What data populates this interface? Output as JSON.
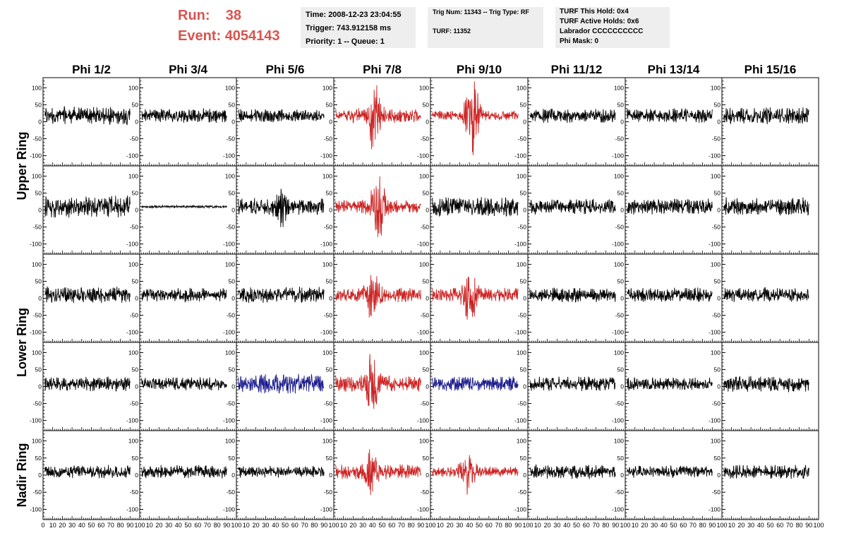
{
  "header": {
    "run_label": "Run:",
    "run_value": "38",
    "event_label": "Event:",
    "event_value": "4054143"
  },
  "info_box_1": {
    "time": "Time: 2008-12-23 23:04:55",
    "trigger": "Trigger: 743.912158 ms",
    "priority": "Priority: 1 -- Queue: 1"
  },
  "info_box_2": {
    "trig": "Trig Num: 11343 -- Trig Type: RF",
    "turf": "TURF: 11352"
  },
  "info_box_3": {
    "this_hold": "TURF This Hold: 0x4",
    "active_holds": "TURF Active Holds: 0x6",
    "labrador": "Labrador CCCCCCCCCC",
    "phi_mask": "Phi Mask: 0"
  },
  "colors": {
    "header_text": "#d9534f",
    "trace_default": "#000000",
    "trace_triggered": "#cc2222",
    "trace_masked": "#1a1a8c",
    "info_box_bg": "#eeeeee"
  },
  "chart_data": {
    "type": "line",
    "columns": [
      "Phi 1/2",
      "Phi 3/4",
      "Phi 5/6",
      "Phi 7/8",
      "Phi 9/10",
      "Phi 11/12",
      "Phi 13/14",
      "Phi 15/16"
    ],
    "rows": [
      "Upper Ring",
      "Upper Ring",
      "Lower Ring",
      "Lower Ring",
      "Nadir Ring"
    ],
    "row_labels": [
      {
        "text": "Upper Ring",
        "spans_rows": [
          0,
          1
        ]
      },
      {
        "text": "Lower Ring",
        "spans_rows": [
          2,
          3
        ]
      },
      {
        "text": "Nadir Ring",
        "spans_rows": [
          4,
          4
        ]
      }
    ],
    "xlim": [
      0,
      100
    ],
    "ylim": [
      -130,
      130
    ],
    "x_ticks": [
      "0",
      "10",
      "20",
      "30",
      "40",
      "50",
      "60",
      "70",
      "80",
      "90",
      "100"
    ],
    "y_ticks": [
      "100",
      "50",
      "0",
      "-50",
      "-100"
    ],
    "grid": false,
    "panels": [
      [
        {
          "color": "black",
          "amplitude": 28,
          "offset": 18,
          "pulse": 0
        },
        {
          "color": "black",
          "amplitude": 22,
          "offset": 18,
          "pulse": 0
        },
        {
          "color": "black",
          "amplitude": 20,
          "offset": 18,
          "pulse": 0
        },
        {
          "color": "red",
          "amplitude": 22,
          "offset": 18,
          "pulse": 100
        },
        {
          "color": "red",
          "amplitude": 15,
          "offset": 18,
          "pulse": 110
        },
        {
          "color": "black",
          "amplitude": 22,
          "offset": 18,
          "pulse": 0
        },
        {
          "color": "black",
          "amplitude": 22,
          "offset": 18,
          "pulse": 0
        },
        {
          "color": "black",
          "amplitude": 26,
          "offset": 18,
          "pulse": 0
        }
      ],
      [
        {
          "color": "black",
          "amplitude": 35,
          "offset": 10,
          "pulse": 0
        },
        {
          "color": "black",
          "amplitude": 4,
          "offset": 10,
          "pulse": 0
        },
        {
          "color": "black",
          "amplitude": 26,
          "offset": 10,
          "pulse": 40
        },
        {
          "color": "red",
          "amplitude": 20,
          "offset": 10,
          "pulse": 90
        },
        {
          "color": "black",
          "amplitude": 30,
          "offset": 10,
          "pulse": 0
        },
        {
          "color": "black",
          "amplitude": 25,
          "offset": 10,
          "pulse": 0
        },
        {
          "color": "black",
          "amplitude": 25,
          "offset": 10,
          "pulse": 0
        },
        {
          "color": "black",
          "amplitude": 28,
          "offset": 10,
          "pulse": 0
        }
      ],
      [
        {
          "color": "black",
          "amplitude": 25,
          "offset": 10,
          "pulse": 0
        },
        {
          "color": "black",
          "amplitude": 22,
          "offset": 10,
          "pulse": 0
        },
        {
          "color": "black",
          "amplitude": 25,
          "offset": 10,
          "pulse": 0
        },
        {
          "color": "red",
          "amplitude": 22,
          "offset": 10,
          "pulse": 70
        },
        {
          "color": "red",
          "amplitude": 22,
          "offset": 10,
          "pulse": 70
        },
        {
          "color": "black",
          "amplitude": 22,
          "offset": 10,
          "pulse": 0
        },
        {
          "color": "black",
          "amplitude": 22,
          "offset": 10,
          "pulse": 0
        },
        {
          "color": "black",
          "amplitude": 22,
          "offset": 10,
          "pulse": 0
        }
      ],
      [
        {
          "color": "black",
          "amplitude": 22,
          "offset": 8,
          "pulse": 0
        },
        {
          "color": "black",
          "amplitude": 20,
          "offset": 8,
          "pulse": 0
        },
        {
          "color": "blue",
          "amplitude": 30,
          "offset": 8,
          "pulse": 0
        },
        {
          "color": "red",
          "amplitude": 25,
          "offset": 8,
          "pulse": 70
        },
        {
          "color": "blue",
          "amplitude": 22,
          "offset": 8,
          "pulse": 0
        },
        {
          "color": "black",
          "amplitude": 22,
          "offset": 8,
          "pulse": 0
        },
        {
          "color": "black",
          "amplitude": 20,
          "offset": 8,
          "pulse": 0
        },
        {
          "color": "black",
          "amplitude": 25,
          "offset": 8,
          "pulse": 0
        }
      ],
      [
        {
          "color": "black",
          "amplitude": 20,
          "offset": 10,
          "pulse": 0
        },
        {
          "color": "black",
          "amplitude": 20,
          "offset": 10,
          "pulse": 0
        },
        {
          "color": "black",
          "amplitude": 18,
          "offset": 10,
          "pulse": 0
        },
        {
          "color": "red",
          "amplitude": 22,
          "offset": 10,
          "pulse": 60
        },
        {
          "color": "red",
          "amplitude": 15,
          "offset": 10,
          "pulse": 55
        },
        {
          "color": "black",
          "amplitude": 22,
          "offset": 10,
          "pulse": 0
        },
        {
          "color": "black",
          "amplitude": 20,
          "offset": 10,
          "pulse": 0
        },
        {
          "color": "black",
          "amplitude": 22,
          "offset": 10,
          "pulse": 0
        }
      ]
    ]
  }
}
